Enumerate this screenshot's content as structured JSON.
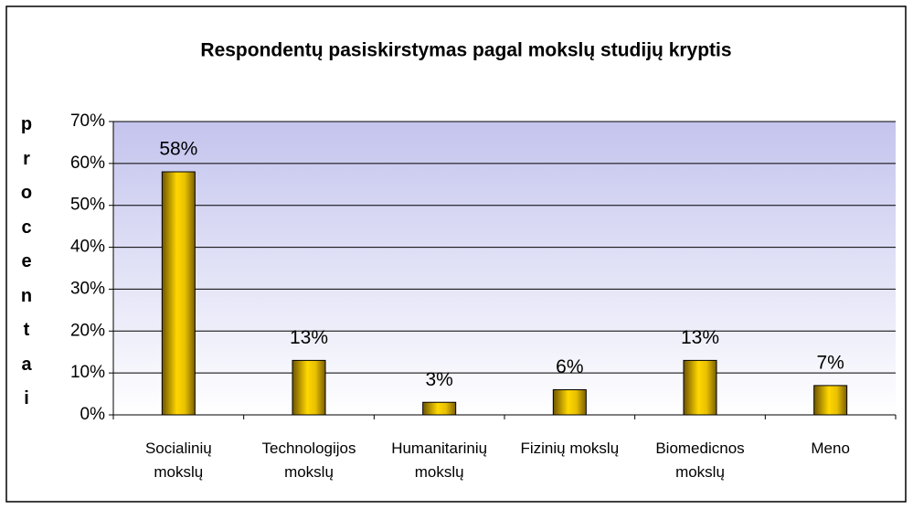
{
  "chart_data": {
    "type": "bar",
    "title": "Respondentų pasiskirstymas pagal mokslų studijų kryptis",
    "y_label": "procentai",
    "categories": [
      "Socialinių mokslų",
      "Technologijos mokslų",
      "Humanitarinių mokslų",
      "Fizinių mokslų",
      "Biomedicnos mokslų",
      "Meno"
    ],
    "values": [
      58,
      13,
      3,
      6,
      13,
      7
    ],
    "value_labels": [
      "58%",
      "13%",
      "3%",
      "6%",
      "13%",
      "7%"
    ],
    "color": "#e8c000",
    "ylim": [
      0,
      70
    ],
    "yticks": [
      {
        "value": 0,
        "label": "0%"
      },
      {
        "value": 10,
        "label": "10%"
      },
      {
        "value": 20,
        "label": "20%"
      },
      {
        "value": 30,
        "label": "30%"
      },
      {
        "value": 40,
        "label": "40%"
      },
      {
        "value": 50,
        "label": "50%"
      },
      {
        "value": 60,
        "label": "60%"
      },
      {
        "value": 70,
        "label": "70%"
      }
    ],
    "grid": true
  }
}
